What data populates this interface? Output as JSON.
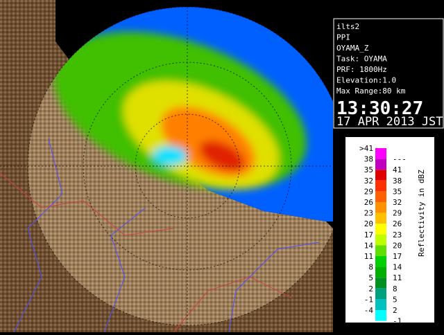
{
  "info": {
    "lines": [
      "ilts2",
      "PPI",
      "OYAMA_Z",
      "Task: OYAMA",
      "PRF: 1800Hz",
      "Elevation:1.0",
      "Max Range:80 km"
    ],
    "time": "13:30:27",
    "date": "17 APR 2013 JST"
  },
  "legend": {
    "label": "Reflectivity in dBZ",
    "rows": [
      {
        "low": ">41",
        "high": "---",
        "color": "#ff00ff"
      },
      {
        "low": "38",
        "high": "41",
        "color": "#c000c0"
      },
      {
        "low": "35",
        "high": "38",
        "color": "#e00000"
      },
      {
        "low": "32",
        "high": "35",
        "color": "#ff3000"
      },
      {
        "low": "29",
        "high": "32",
        "color": "#ff6000"
      },
      {
        "low": "26",
        "high": "29",
        "color": "#ff9000"
      },
      {
        "low": "23",
        "high": "26",
        "color": "#ffc000"
      },
      {
        "low": "20",
        "high": "23",
        "color": "#ffff00"
      },
      {
        "low": "17",
        "high": "20",
        "color": "#c0ff00"
      },
      {
        "low": "14",
        "high": "17",
        "color": "#60e000"
      },
      {
        "low": "11",
        "high": "14",
        "color": "#00d000"
      },
      {
        "low": "8",
        "high": "11",
        "color": "#00b000"
      },
      {
        "low": "5",
        "high": "8",
        "color": "#009020"
      },
      {
        "low": "2",
        "high": "5",
        "color": "#00a080"
      },
      {
        "low": "-1",
        "high": "2",
        "color": "#00c0c0"
      },
      {
        "low": "-4",
        "high": "-1",
        "color": "#00ffff"
      }
    ]
  }
}
